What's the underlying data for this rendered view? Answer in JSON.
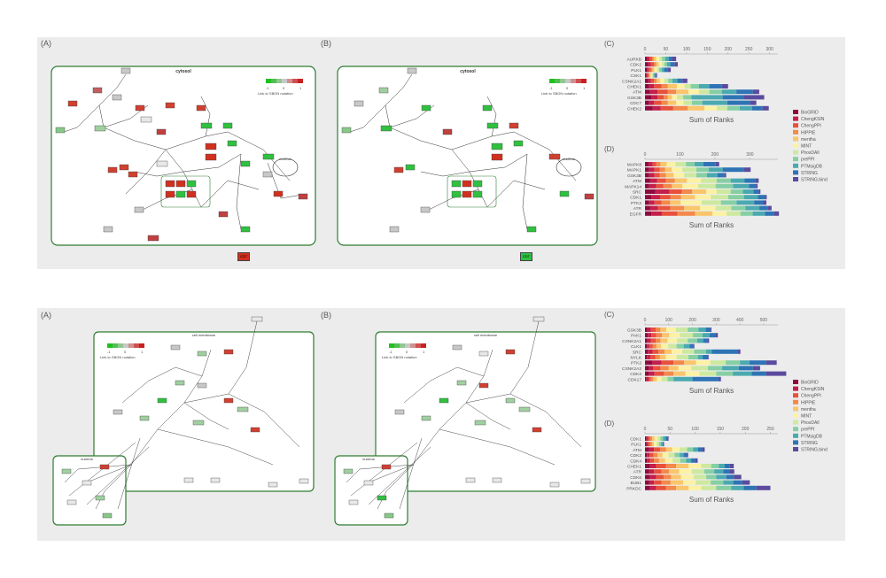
{
  "figure": {
    "top": {
      "network_a": {
        "letter": "(A)",
        "compartments": [
          "cytosol",
          "nucleus"
        ],
        "legend_ticks": [
          "-1",
          "0",
          "1"
        ],
        "legend_caption": "Link to SBGN notation"
      },
      "network_b": {
        "letter": "(B)",
        "compartments": [
          "cytosol",
          "nucleus"
        ],
        "legend_ticks": [
          "-1",
          "0",
          "1"
        ],
        "legend_caption": "Link to SBGN notation"
      },
      "footer_label": "CDT"
    },
    "bottom": {
      "network_a": {
        "letter": "(A)",
        "compartments": [
          "cell membrane",
          "nucleus"
        ],
        "legend_ticks": [
          "-1",
          "0",
          "1"
        ],
        "legend_caption": "Link to SBGN notation"
      },
      "network_b": {
        "letter": "(B)",
        "compartments": [
          "cell membrane",
          "nucleus"
        ],
        "legend_ticks": [
          "-1",
          "0",
          "1"
        ],
        "legend_caption": "Link to SBGN notation"
      }
    }
  },
  "legend_entries": [
    "BioGRID",
    "ChengKSIN",
    "ChengPPI",
    "HIPPIE",
    "mentha",
    "MINT",
    "PhosDAll",
    "prePPI",
    "PTMsigDB",
    "STRING",
    "STRING.bind"
  ],
  "colors": {
    "BioGRID": "#8e0a3e",
    "ChengKSIN": "#c41e4a",
    "ChengPPI": "#e8503c",
    "HIPPIE": "#f3894a",
    "mentha": "#fbc56a",
    "MINT": "#fdf2a3",
    "PhosDAll": "#cde9a0",
    "prePPI": "#86cfa4",
    "PTMsigDB": "#4ba9b0",
    "STRING": "#2e74b5",
    "STRING.bind": "#5b4b9e",
    "panel_bg": "#ececec",
    "compartment": "#2e7d32",
    "up": "#d03020",
    "down": "#28c040"
  },
  "chart_data": [
    {
      "letter": "(C)",
      "type": "bar",
      "orientation": "horizontal",
      "stacked": true,
      "xlabel": "Sum of Ranks",
      "xlim": [
        0,
        320
      ],
      "xticks": [
        0,
        50,
        100,
        150,
        200,
        250,
        300
      ],
      "categories": [
        "AURKB",
        "CDK2",
        "PLK1",
        "CSK1",
        "CSNK2A1",
        "CHEK1",
        "ATM",
        "GSK3B",
        "CDC7",
        "CHEK2"
      ],
      "series": [
        {
          "name": "BioGRID",
          "values": [
            6,
            8,
            5,
            3,
            8,
            10,
            12,
            15,
            10,
            18
          ]
        },
        {
          "name": "ChengKSIN",
          "values": [
            5,
            6,
            4,
            3,
            6,
            12,
            18,
            15,
            12,
            20
          ]
        },
        {
          "name": "ChengPPI",
          "values": [
            6,
            8,
            5,
            3,
            8,
            18,
            25,
            15,
            18,
            30
          ]
        },
        {
          "name": "HIPPIE",
          "values": [
            4,
            5,
            4,
            2,
            6,
            15,
            20,
            10,
            15,
            35
          ]
        },
        {
          "name": "mentha",
          "values": [
            6,
            6,
            5,
            3,
            8,
            22,
            30,
            10,
            20,
            40
          ]
        },
        {
          "name": "MINT",
          "values": [
            8,
            8,
            6,
            3,
            10,
            18,
            25,
            12,
            18,
            30
          ]
        },
        {
          "name": "PhosDAll",
          "values": [
            6,
            6,
            5,
            2,
            10,
            15,
            25,
            15,
            20,
            25
          ]
        },
        {
          "name": "prePPI",
          "values": [
            8,
            6,
            6,
            3,
            10,
            20,
            30,
            20,
            25,
            30
          ]
        },
        {
          "name": "PTMsigDB",
          "values": [
            8,
            8,
            6,
            2,
            12,
            25,
            35,
            75,
            60,
            30
          ]
        },
        {
          "name": "STRING",
          "values": [
            8,
            10,
            8,
            3,
            12,
            30,
            40,
            50,
            55,
            25
          ]
        },
        {
          "name": "STRING.bind",
          "values": [
            10,
            8,
            8,
            2,
            12,
            15,
            15,
            50,
            15,
            15
          ]
        }
      ]
    },
    {
      "letter": "(D)",
      "type": "bar",
      "orientation": "horizontal",
      "stacked": true,
      "xlabel": "Sum of Ranks",
      "xlim": [
        0,
        380
      ],
      "xticks": [
        0,
        100,
        200,
        300
      ],
      "categories": [
        "MAPK8",
        "MAPK1",
        "GSK3B",
        "ATM",
        "MAPK14",
        "SRC",
        "CDK1",
        "PTK2",
        "ATR",
        "EGFR"
      ],
      "series": [
        {
          "name": "BioGRID",
          "values": [
            10,
            12,
            12,
            15,
            12,
            30,
            18,
            12,
            15,
            18
          ]
        },
        {
          "name": "ChengKSIN",
          "values": [
            12,
            15,
            15,
            20,
            20,
            40,
            25,
            15,
            22,
            30
          ]
        },
        {
          "name": "ChengPPI",
          "values": [
            10,
            15,
            15,
            25,
            20,
            35,
            30,
            20,
            35,
            45
          ]
        },
        {
          "name": "HIPPIE",
          "values": [
            12,
            15,
            18,
            25,
            25,
            30,
            30,
            25,
            40,
            50
          ]
        },
        {
          "name": "mentha",
          "values": [
            18,
            20,
            22,
            35,
            30,
            40,
            40,
            30,
            45,
            50
          ]
        },
        {
          "name": "MINT",
          "values": [
            25,
            30,
            30,
            40,
            45,
            30,
            45,
            60,
            45,
            40
          ]
        },
        {
          "name": "PhosDAll",
          "values": [
            30,
            40,
            35,
            45,
            50,
            40,
            50,
            55,
            45,
            40
          ]
        },
        {
          "name": "prePPI",
          "values": [
            25,
            35,
            30,
            40,
            50,
            35,
            45,
            45,
            40,
            35
          ]
        },
        {
          "name": "PTMsigDB",
          "values": [
            25,
            40,
            30,
            40,
            45,
            30,
            40,
            50,
            40,
            35
          ]
        },
        {
          "name": "STRING",
          "values": [
            35,
            60,
            20,
            30,
            20,
            15,
            20,
            25,
            25,
            25
          ]
        },
        {
          "name": "STRING.bind",
          "values": [
            10,
            20,
            5,
            10,
            5,
            5,
            5,
            10,
            10,
            15
          ]
        }
      ]
    },
    {
      "letter": "(C)",
      "type": "bar",
      "orientation": "horizontal",
      "stacked": true,
      "xlabel": "Sum of Ranks",
      "xlim": [
        0,
        560
      ],
      "xticks": [
        0,
        100,
        200,
        300,
        400,
        500
      ],
      "categories": [
        "GSK3B",
        "PAK1",
        "CSNK2A1",
        "CLK1",
        "SRC",
        "NYLK",
        "PTK2",
        "CSNK2A2",
        "CDK2",
        "CDK17"
      ],
      "series": [
        {
          "name": "BioGRID",
          "values": [
            10,
            12,
            10,
            8,
            12,
            8,
            30,
            15,
            15,
            5
          ]
        },
        {
          "name": "ChengKSIN",
          "values": [
            15,
            15,
            15,
            10,
            20,
            15,
            40,
            20,
            25,
            10
          ]
        },
        {
          "name": "ChengPPI",
          "values": [
            20,
            20,
            20,
            15,
            25,
            20,
            50,
            30,
            40,
            10
          ]
        },
        {
          "name": "HIPPIE",
          "values": [
            20,
            25,
            20,
            15,
            25,
            20,
            45,
            35,
            40,
            10
          ]
        },
        {
          "name": "mentha",
          "values": [
            25,
            30,
            30,
            20,
            30,
            25,
            50,
            40,
            50,
            15
          ]
        },
        {
          "name": "MINT",
          "values": [
            40,
            45,
            40,
            30,
            45,
            45,
            60,
            55,
            60,
            20
          ]
        },
        {
          "name": "PhosDAll",
          "values": [
            50,
            55,
            45,
            35,
            50,
            50,
            65,
            70,
            70,
            25
          ]
        },
        {
          "name": "prePPI",
          "values": [
            45,
            40,
            40,
            30,
            50,
            40,
            60,
            60,
            70,
            25
          ]
        },
        {
          "name": "PTMsigDB",
          "values": [
            30,
            30,
            25,
            25,
            25,
            20,
            40,
            70,
            80,
            80
          ]
        },
        {
          "name": "STRING",
          "values": [
            20,
            25,
            20,
            15,
            110,
            20,
            70,
            60,
            60,
            110
          ]
        },
        {
          "name": "STRING.bind",
          "values": [
            5,
            10,
            5,
            5,
            10,
            5,
            45,
            30,
            85,
            10
          ]
        }
      ]
    },
    {
      "letter": "(D)",
      "type": "bar",
      "orientation": "horizontal",
      "stacked": true,
      "xlabel": "Sum of Ranks",
      "xlim": [
        0,
        265
      ],
      "xticks": [
        0,
        50,
        100,
        150,
        200,
        250
      ],
      "categories": [
        "CDK1",
        "PLK1",
        "ATM",
        "CDK2",
        "CDK4",
        "CHEK1",
        "ATR",
        "CDK6",
        "BUB1",
        "PRKDC"
      ],
      "series": [
        {
          "name": "BioGRID",
          "values": [
            3,
            3,
            8,
            4,
            4,
            10,
            8,
            10,
            8,
            10
          ]
        },
        {
          "name": "ChengKSIN",
          "values": [
            3,
            3,
            10,
            5,
            6,
            12,
            10,
            12,
            10,
            12
          ]
        },
        {
          "name": "ChengPPI",
          "values": [
            4,
            4,
            12,
            8,
            8,
            20,
            15,
            15,
            15,
            20
          ]
        },
        {
          "name": "HIPPIE",
          "values": [
            4,
            4,
            12,
            8,
            10,
            20,
            15,
            15,
            18,
            20
          ]
        },
        {
          "name": "mentha",
          "values": [
            5,
            4,
            12,
            10,
            12,
            25,
            20,
            20,
            25,
            25
          ]
        },
        {
          "name": "MINT",
          "values": [
            6,
            5,
            15,
            12,
            15,
            25,
            25,
            25,
            25,
            25
          ]
        },
        {
          "name": "PhosDAll",
          "values": [
            6,
            5,
            15,
            12,
            15,
            20,
            25,
            25,
            30,
            30
          ]
        },
        {
          "name": "prePPI",
          "values": [
            5,
            4,
            12,
            10,
            12,
            15,
            20,
            20,
            25,
            30
          ]
        },
        {
          "name": "PTMsigDB",
          "values": [
            5,
            3,
            10,
            8,
            10,
            12,
            18,
            20,
            20,
            25
          ]
        },
        {
          "name": "STRING",
          "values": [
            4,
            2,
            8,
            6,
            8,
            10,
            12,
            15,
            18,
            25
          ]
        },
        {
          "name": "STRING.bind",
          "values": [
            2,
            1,
            5,
            3,
            5,
            8,
            10,
            15,
            15,
            28
          ]
        }
      ]
    }
  ]
}
